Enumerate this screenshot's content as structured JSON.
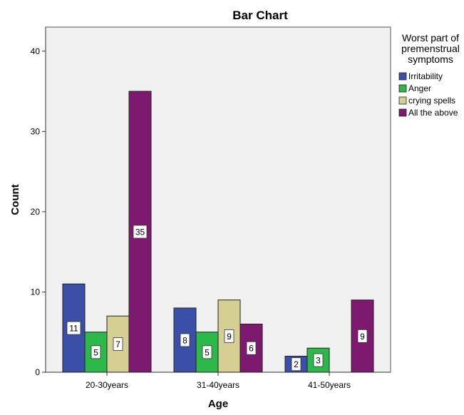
{
  "chart_data": {
    "type": "bar",
    "title": "Bar Chart",
    "xlabel": "Age",
    "ylabel": "Count",
    "ylim": [
      0,
      43
    ],
    "yticks": [
      0,
      10,
      20,
      30,
      40
    ],
    "grid": false,
    "legend_position": "right",
    "legend_title": [
      "Worst part of",
      "premenstrual",
      "symptoms"
    ],
    "categories": [
      "20-30years",
      "31-40years",
      "41-50years"
    ],
    "series": [
      {
        "name": "Irritability",
        "color": "#3a4fa8",
        "values": [
          11,
          8,
          2
        ]
      },
      {
        "name": "Anger",
        "color": "#2db84a",
        "values": [
          5,
          5,
          3
        ]
      },
      {
        "name": "crying spells",
        "color": "#d6cf94",
        "values": [
          7,
          9,
          0
        ]
      },
      {
        "name": "All the above",
        "color": "#7d1a6f",
        "values": [
          35,
          6,
          9
        ]
      }
    ],
    "plot_background": "#f0f0f0",
    "bar_outline": "#222222"
  }
}
